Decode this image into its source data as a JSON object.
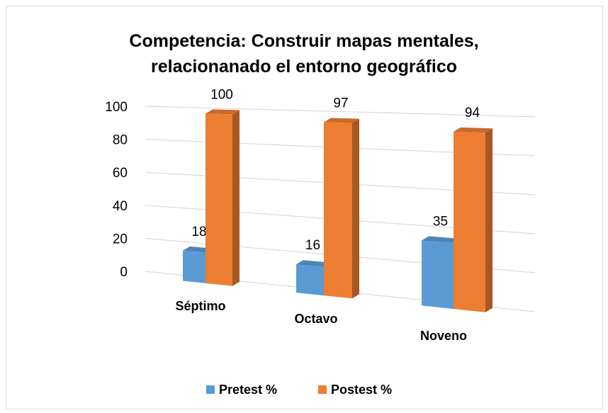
{
  "chart_data": {
    "type": "bar3d",
    "title": "Competencia: Construir mapas mentales, relacionanado el entorno geográfico",
    "categories": [
      "Séptimo",
      "Octavo",
      "Noveno"
    ],
    "series": [
      {
        "name": "Pretest %",
        "color": "#5b9bd5",
        "values": [
          18,
          16,
          35
        ]
      },
      {
        "name": "Postest %",
        "color": "#ed7d31",
        "values": [
          100,
          97,
          94
        ]
      }
    ],
    "ylim": [
      0,
      100
    ],
    "yticks": [
      0,
      20,
      40,
      60,
      80,
      100
    ],
    "grid": true,
    "legend": "bottom"
  }
}
